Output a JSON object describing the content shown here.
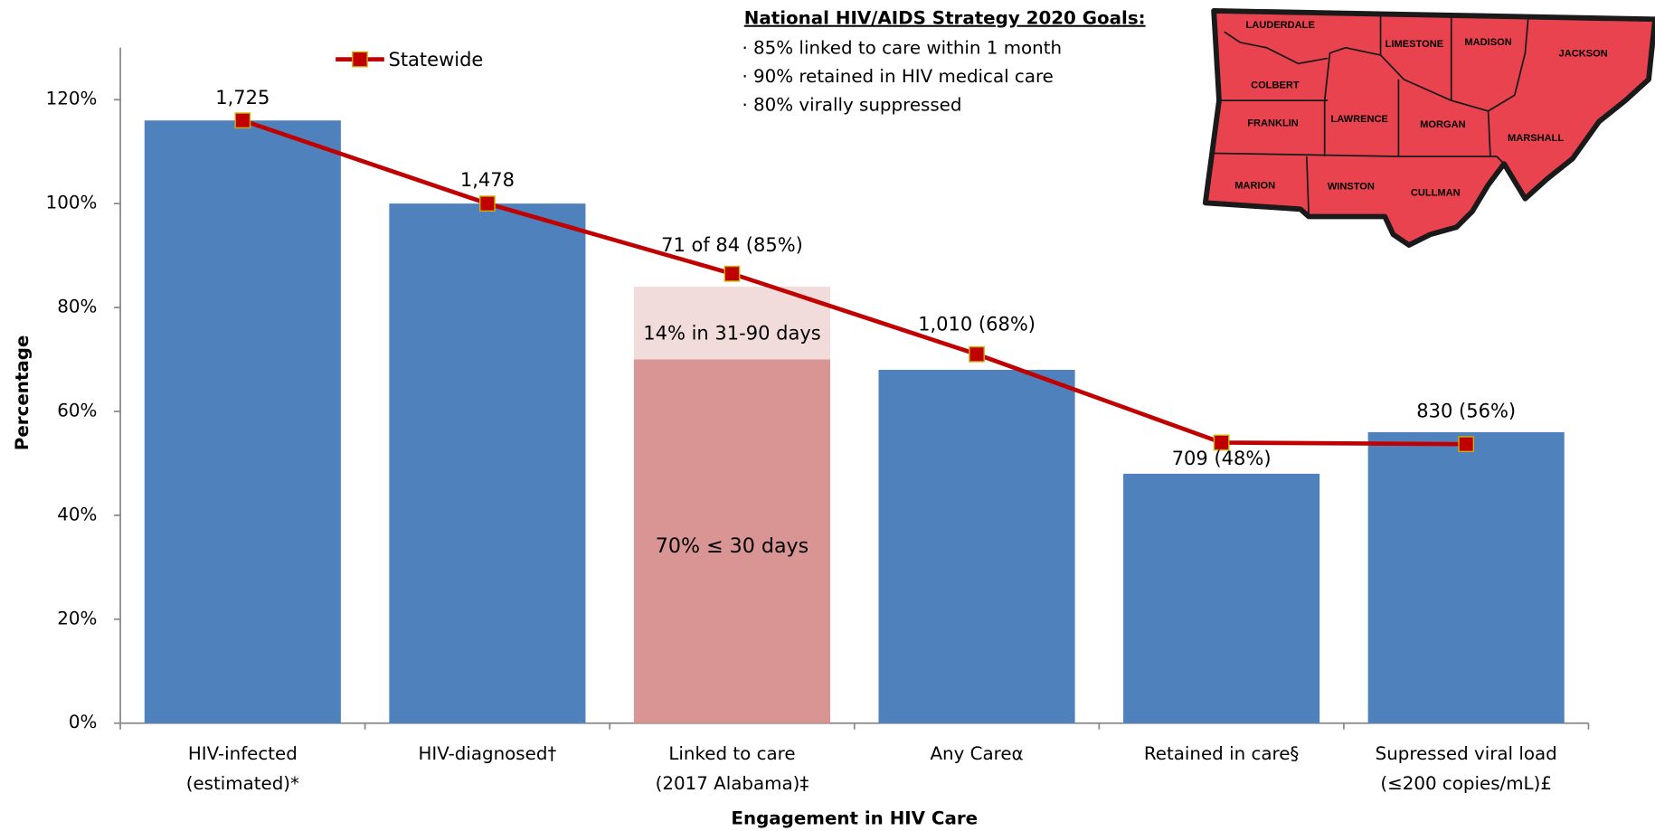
{
  "chart_data": {
    "type": "bar",
    "x_label": "Engagement in HIV Care",
    "y_label": "Percentage",
    "categories": [
      [
        "HIV-infected",
        "(estimated)*"
      ],
      [
        "HIV-diagnosed†"
      ],
      [
        "Linked to care",
        "(2017 Alabama)‡"
      ],
      [
        "Any Careα"
      ],
      [
        "Retained in care§"
      ],
      [
        "Supressed viral load",
        "(≤200 copies/mL)£"
      ]
    ],
    "bar_layers": [
      {
        "color": "#4f81bd",
        "values": [
          116,
          100,
          null,
          68,
          48,
          56
        ]
      },
      {
        "color": "#d99594",
        "values": [
          null,
          null,
          70,
          null,
          null,
          null
        ],
        "segment_labels": [
          null,
          null,
          "70% ≤ 30 days",
          null,
          null,
          null
        ]
      },
      {
        "color": "#f2dcdb",
        "values": [
          null,
          null,
          14,
          null,
          null,
          null
        ],
        "segment_labels": [
          null,
          null,
          "14% in 31-90 days",
          null,
          null,
          null
        ]
      }
    ],
    "bar_annotations": [
      "1,725",
      "1,478",
      "71 of 84 (85%)",
      "1,010 (68%)",
      "709 (48%)",
      "830 (56%)"
    ],
    "line_series": {
      "name": "Statewide",
      "color": "#c00000",
      "values": [
        116,
        100,
        86.5,
        71,
        54,
        53.7
      ]
    },
    "ylim": [
      0,
      130
    ],
    "yticks": [
      {
        "value": 0,
        "label": "0%"
      },
      {
        "value": 20,
        "label": "20%"
      },
      {
        "value": 40,
        "label": "40%"
      },
      {
        "value": 60,
        "label": "60%"
      },
      {
        "value": 80,
        "label": "80%"
      },
      {
        "value": 100,
        "label": "100%"
      },
      {
        "value": 120,
        "label": "120%"
      }
    ],
    "goals": {
      "title": "National HIV/AIDS Strategy 2020 Goals:",
      "items": [
        "· 85% linked to care within 1 month",
        "· 90% retained in HIV medical care",
        "· 80% virally suppressed"
      ]
    },
    "map": {
      "counties": [
        "LAUDERDALE",
        "LIMESTONE",
        "MADISON",
        "JACKSON",
        "COLBERT",
        "FRANKLIN",
        "LAWRENCE",
        "MORGAN",
        "MARSHALL",
        "MARION",
        "WINSTON",
        "CULLMAN"
      ]
    }
  }
}
